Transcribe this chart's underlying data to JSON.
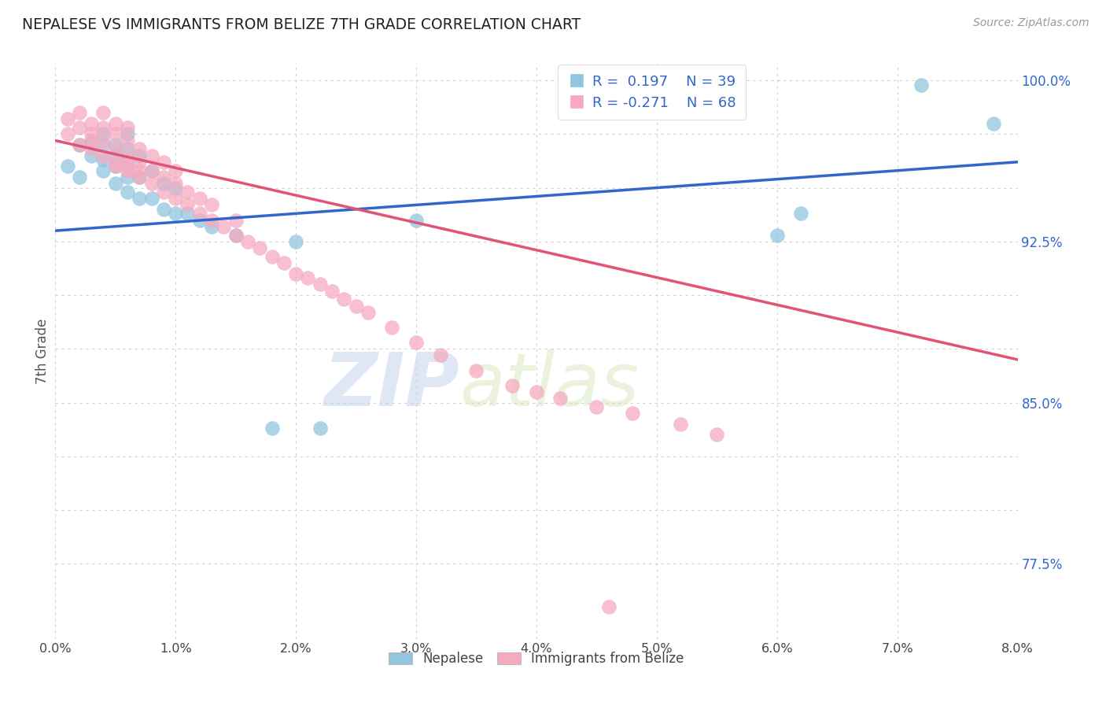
{
  "title": "NEPALESE VS IMMIGRANTS FROM BELIZE 7TH GRADE CORRELATION CHART",
  "source_text": "Source: ZipAtlas.com",
  "ylabel": "7th Grade",
  "watermark_zip": "ZIP",
  "watermark_atlas": "atlas",
  "xlim": [
    0.0,
    0.08
  ],
  "ylim": [
    0.74,
    1.008
  ],
  "xticklabels": [
    "0.0%",
    "1.0%",
    "2.0%",
    "3.0%",
    "4.0%",
    "5.0%",
    "6.0%",
    "7.0%",
    "8.0%"
  ],
  "xtick_vals": [
    0.0,
    0.01,
    0.02,
    0.03,
    0.04,
    0.05,
    0.06,
    0.07,
    0.08
  ],
  "right_ytick_vals": [
    0.775,
    0.85,
    0.925,
    1.0
  ],
  "right_yticklabels": [
    "77.5%",
    "85.0%",
    "92.5%",
    "100.0%"
  ],
  "grid_ytick_vals": [
    0.775,
    0.8,
    0.825,
    0.85,
    0.875,
    0.9,
    0.925,
    0.95,
    0.975,
    1.0
  ],
  "legend_r1": "R =  0.197",
  "legend_n1": "N = 39",
  "legend_r2": "R = -0.271",
  "legend_n2": "N = 68",
  "blue_color": "#92C5E0",
  "pink_color": "#F5AABF",
  "blue_line_color": "#3366CC",
  "pink_line_color": "#E05575",
  "legend_text_color": "#3366CC",
  "background_color": "#FFFFFF",
  "grid_color": "#CCCCCC",
  "blue_line_y0": 0.93,
  "blue_line_y1": 0.962,
  "pink_line_y0": 0.972,
  "pink_line_y1": 0.87,
  "nepalese_x": [
    0.001,
    0.002,
    0.002,
    0.003,
    0.003,
    0.004,
    0.004,
    0.004,
    0.004,
    0.005,
    0.005,
    0.005,
    0.005,
    0.006,
    0.006,
    0.006,
    0.006,
    0.006,
    0.007,
    0.007,
    0.007,
    0.008,
    0.008,
    0.009,
    0.009,
    0.01,
    0.01,
    0.011,
    0.012,
    0.013,
    0.015,
    0.018,
    0.02,
    0.022,
    0.03,
    0.06,
    0.062,
    0.072,
    0.078
  ],
  "nepalese_y": [
    0.96,
    0.97,
    0.955,
    0.965,
    0.972,
    0.958,
    0.963,
    0.97,
    0.975,
    0.952,
    0.96,
    0.965,
    0.97,
    0.948,
    0.955,
    0.962,
    0.968,
    0.975,
    0.945,
    0.955,
    0.965,
    0.945,
    0.958,
    0.94,
    0.952,
    0.938,
    0.95,
    0.938,
    0.935,
    0.932,
    0.928,
    0.838,
    0.925,
    0.838,
    0.935,
    0.928,
    0.938,
    0.998,
    0.98
  ],
  "belize_x": [
    0.001,
    0.001,
    0.002,
    0.002,
    0.002,
    0.003,
    0.003,
    0.003,
    0.003,
    0.004,
    0.004,
    0.004,
    0.004,
    0.005,
    0.005,
    0.005,
    0.005,
    0.005,
    0.006,
    0.006,
    0.006,
    0.006,
    0.006,
    0.007,
    0.007,
    0.007,
    0.007,
    0.008,
    0.008,
    0.008,
    0.009,
    0.009,
    0.009,
    0.01,
    0.01,
    0.01,
    0.011,
    0.011,
    0.012,
    0.012,
    0.013,
    0.013,
    0.014,
    0.015,
    0.015,
    0.016,
    0.017,
    0.018,
    0.019,
    0.02,
    0.021,
    0.022,
    0.023,
    0.024,
    0.025,
    0.026,
    0.028,
    0.03,
    0.032,
    0.035,
    0.038,
    0.04,
    0.042,
    0.045,
    0.048,
    0.052,
    0.055,
    0.046
  ],
  "belize_y": [
    0.975,
    0.982,
    0.97,
    0.978,
    0.985,
    0.968,
    0.975,
    0.98,
    0.972,
    0.965,
    0.972,
    0.978,
    0.985,
    0.962,
    0.968,
    0.975,
    0.98,
    0.96,
    0.958,
    0.965,
    0.972,
    0.978,
    0.96,
    0.955,
    0.962,
    0.968,
    0.958,
    0.952,
    0.958,
    0.965,
    0.948,
    0.955,
    0.962,
    0.945,
    0.952,
    0.958,
    0.942,
    0.948,
    0.938,
    0.945,
    0.935,
    0.942,
    0.932,
    0.928,
    0.935,
    0.925,
    0.922,
    0.918,
    0.915,
    0.91,
    0.908,
    0.905,
    0.902,
    0.898,
    0.895,
    0.892,
    0.885,
    0.878,
    0.872,
    0.865,
    0.858,
    0.855,
    0.852,
    0.848,
    0.845,
    0.84,
    0.835,
    0.755
  ]
}
